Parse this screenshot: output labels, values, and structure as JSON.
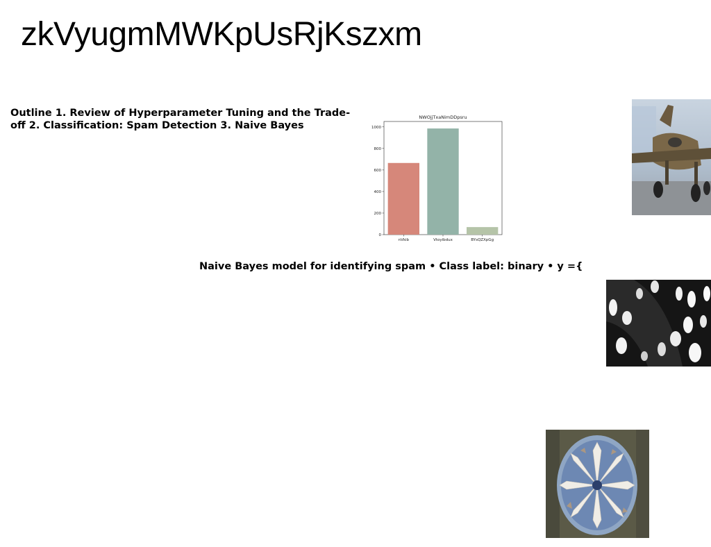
{
  "slide": {
    "title": "zkVyugmMWKpUsRjKszxm",
    "outline_text": "Outline 1. Review of Hyperparameter Tuning and the Trade-off 2. Classification: Spam Detection 3. Naive Bayes",
    "body_text": "Naive Bayes model for identifying spam • Class label: binary • y ={"
  },
  "images": [
    {
      "name": "airplane-photo"
    },
    {
      "name": "black-white-dots-photo"
    },
    {
      "name": "mosaic-star-photo"
    }
  ],
  "chart_data": {
    "type": "bar",
    "title": "NWOjjTxaNimDDpsru",
    "categories": [
      "nVkib",
      "Vtoyibdux",
      "BYsQZXpGg"
    ],
    "values": [
      665,
      985,
      70
    ],
    "colors": [
      "#d6877a",
      "#93b3a8",
      "#b5c4a8"
    ],
    "xlabel": "",
    "ylabel": "",
    "ylim": [
      0,
      1050
    ],
    "yticks": [
      0,
      200,
      400,
      600,
      800,
      1000
    ],
    "grid": false
  }
}
